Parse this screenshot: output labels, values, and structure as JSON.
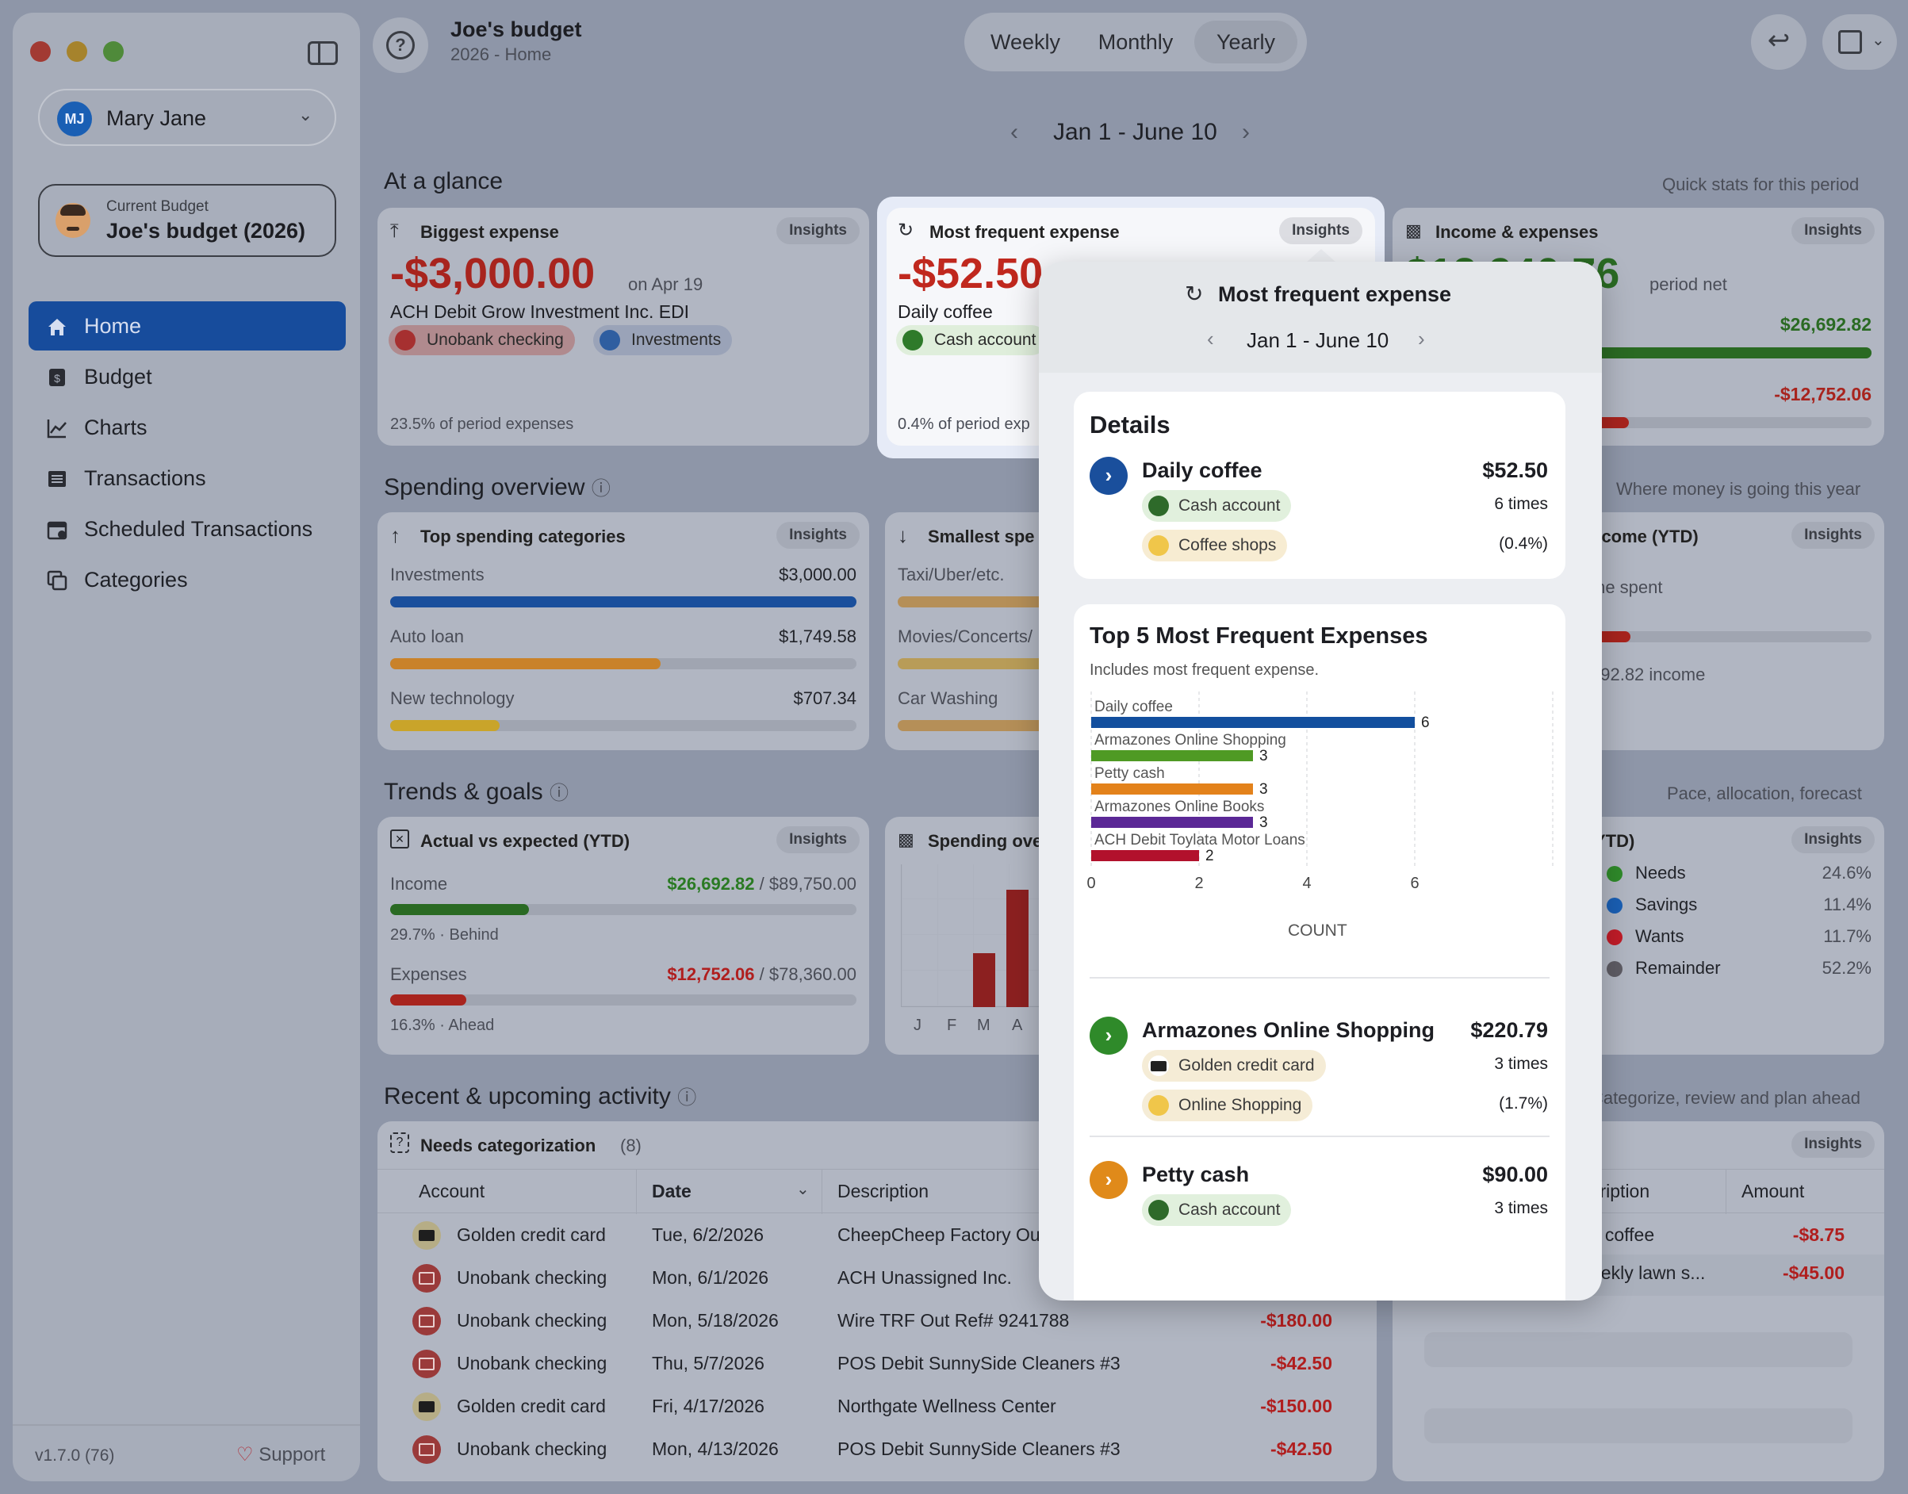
{
  "window": {
    "title": "Joe's budget",
    "subtitle": "2026 - Home",
    "period_tabs": [
      "Weekly",
      "Monthly",
      "Yearly"
    ],
    "selected_period": "Yearly",
    "date_range": "Jan 1 - June 10"
  },
  "sidebar": {
    "user_initials": "MJ",
    "user_name": "Mary Jane",
    "current_budget_label": "Current Budget",
    "current_budget": "Joe's budget (2026)",
    "items": [
      {
        "label": "Home",
        "icon": "house-icon"
      },
      {
        "label": "Budget",
        "icon": "dollar-doc-icon"
      },
      {
        "label": "Charts",
        "icon": "line-chart-icon"
      },
      {
        "label": "Transactions",
        "icon": "list-icon"
      },
      {
        "label": "Scheduled Transactions",
        "icon": "calendar-icon"
      },
      {
        "label": "Categories",
        "icon": "folders-icon"
      }
    ],
    "version": "v1.7.0 (76)",
    "support": "Support"
  },
  "glance": {
    "title": "At a glance",
    "right_note": "Quick stats for this period",
    "insights": "Insights",
    "biggest": {
      "title": "Biggest expense",
      "amount": "-$3,000.00",
      "date": "on Apr 19",
      "desc": "ACH Debit Grow Investment Inc. EDI",
      "tags": [
        "Unobank checking",
        "Investments"
      ],
      "footer": "23.5% of period expenses"
    },
    "frequent": {
      "title": "Most frequent expense",
      "amount": "-$52.50",
      "desc": "Daily coffee",
      "tag": "Cash account",
      "footer": "0.4% of period exp"
    },
    "income": {
      "title": "Income & expenses",
      "amount": "$13,940.76",
      "net": "period net",
      "income_value": "$26,692.82",
      "expense_value": "-$12,752.06"
    }
  },
  "spending": {
    "title": "Spending overview",
    "right_note": "Where money is going this year",
    "top": {
      "title": "Top spending categories",
      "rows": [
        {
          "name": "Investments",
          "value": "$3,000.00",
          "fraction": 1.0,
          "color": "#1a4f9c"
        },
        {
          "name": "Auto loan",
          "value": "$1,749.58",
          "fraction": 0.58,
          "color": "#c9822a"
        },
        {
          "name": "New technology",
          "value": "$707.34",
          "fraction": 0.235,
          "color": "#c9a42a"
        }
      ]
    },
    "smallest": {
      "title": "Smallest spe",
      "rows": [
        "Taxi/Uber/etc.",
        "Movies/Concerts/",
        "Car Washing"
      ]
    },
    "income_ytd": {
      "title": "ncome (YTD)",
      "line1": "me spent",
      "line2": "692.82 income"
    }
  },
  "trends": {
    "title": "Trends & goals",
    "right_note": "Pace, allocation, forecast",
    "actual": {
      "title": "Actual vs expected (YTD)",
      "income_label": "Income",
      "income_value": "$26,692.82",
      "income_target": "/ $89,750.00",
      "income_status": "29.7% · Behind",
      "income_fraction": 0.297,
      "expenses_label": "Expenses",
      "expenses_value": "$12,752.06",
      "expenses_target": "/ $78,360.00",
      "expenses_status": "16.3% · Ahead",
      "expenses_fraction": 0.163
    },
    "spending_over": {
      "title": "Spending ove",
      "months": [
        "J",
        "F",
        "M",
        "A"
      ]
    },
    "allocation": {
      "title": "YTD)",
      "rows": [
        {
          "name": "Needs",
          "pct": "24.6%",
          "color": "#2f8a2a"
        },
        {
          "name": "Savings",
          "pct": "11.4%",
          "color": "#1a5fb4"
        },
        {
          "name": "Wants",
          "pct": "11.7%",
          "color": "#c01c28"
        },
        {
          "name": "Remainder",
          "pct": "52.2%",
          "color": "#5e5c64"
        }
      ]
    }
  },
  "activity": {
    "title": "Recent & upcoming activity",
    "right_note": "Categorize, review and plan ahead",
    "needs": {
      "title": "Needs categorization",
      "count": "(8)",
      "headers": [
        "Account",
        "Date",
        "Description"
      ],
      "rows": [
        {
          "account": "Golden credit card",
          "type": "card",
          "date": "Tue, 6/2/2026",
          "desc": "CheepCheep Factory Ou",
          "amount": ""
        },
        {
          "account": "Unobank checking",
          "type": "bank",
          "date": "Mon, 6/1/2026",
          "desc": "ACH Unassigned Inc.",
          "amount": ""
        },
        {
          "account": "Unobank checking",
          "type": "bank",
          "date": "Mon, 5/18/2026",
          "desc": "Wire TRF Out Ref# 9241788",
          "amount": "-$180.00"
        },
        {
          "account": "Unobank checking",
          "type": "bank",
          "date": "Thu, 5/7/2026",
          "desc": "POS Debit SunnySide Cleaners #3",
          "amount": "-$42.50"
        },
        {
          "account": "Golden credit card",
          "type": "card",
          "date": "Fri, 4/17/2026",
          "desc": "Northgate Wellness Center",
          "amount": "-$150.00"
        },
        {
          "account": "Unobank checking",
          "type": "bank",
          "date": "Mon, 4/13/2026",
          "desc": "POS Debit SunnySide Cleaners #3",
          "amount": "-$42.50"
        }
      ]
    },
    "upcoming": {
      "headers": [
        "cription",
        "Amount"
      ],
      "rows": [
        {
          "desc": "y coffee",
          "amount": "-$8.75"
        },
        {
          "desc": "eekly lawn s...",
          "amount": "-$45.00"
        }
      ]
    }
  },
  "popover": {
    "title": "Most frequent expense",
    "date_range": "Jan 1 - June 10",
    "details": {
      "heading": "Details",
      "name": "Daily coffee",
      "amount": "$52.50",
      "account": "Cash account",
      "times": "6 times",
      "category": "Coffee shops",
      "pct": "(0.4%)"
    },
    "top5": {
      "heading": "Top 5 Most Frequent Expenses",
      "subheading": "Includes most frequent expense.",
      "xlabel": "COUNT"
    },
    "items": [
      {
        "name": "Armazones Online Shopping",
        "amount": "$220.79",
        "account": "Golden credit card",
        "times": "3 times",
        "category": "Online Shopping",
        "pct": "(1.7%)",
        "color": "#2f8a2a"
      },
      {
        "name": "Petty cash",
        "amount": "$90.00",
        "account": "Cash account",
        "times": "3 times",
        "color": "#e08a1a"
      }
    ]
  },
  "chart_data": {
    "type": "bar",
    "orientation": "horizontal",
    "categories": [
      "Daily coffee",
      "Armazones Online Shopping",
      "Petty cash",
      "Armazones Online Books",
      "ACH Debit Toylata Motor Loans"
    ],
    "values": [
      6,
      3,
      3,
      3,
      2
    ],
    "colors": [
      "#124f9e",
      "#4f9a24",
      "#e3821b",
      "#5b2896",
      "#b2112c"
    ],
    "title": "Top 5 Most Frequent Expenses",
    "xlabel": "COUNT",
    "xlim": [
      0,
      6
    ],
    "xticks": [
      0,
      2,
      4,
      6
    ],
    "grid": true
  }
}
